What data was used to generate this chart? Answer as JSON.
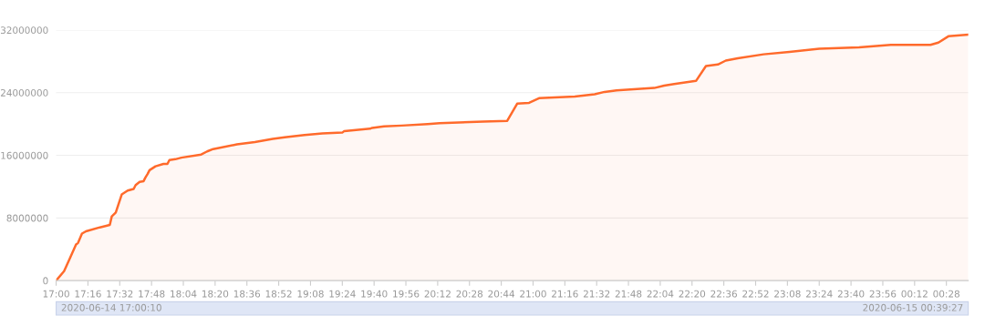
{
  "chart_data": {
    "type": "area",
    "x": [
      "2020-06-14T17:00",
      "2020-06-14T17:04",
      "2020-06-14T17:07",
      "2020-06-14T17:10",
      "2020-06-14T17:11",
      "2020-06-14T17:13",
      "2020-06-14T17:15",
      "2020-06-14T17:22",
      "2020-06-14T17:27",
      "2020-06-14T17:28",
      "2020-06-14T17:30",
      "2020-06-14T17:33",
      "2020-06-14T17:36",
      "2020-06-14T17:39",
      "2020-06-14T17:40",
      "2020-06-14T17:42",
      "2020-06-14T17:44",
      "2020-06-14T17:45",
      "2020-06-14T17:46",
      "2020-06-14T17:47",
      "2020-06-14T17:50",
      "2020-06-14T17:54",
      "2020-06-14T17:56",
      "2020-06-14T17:57",
      "2020-06-14T18:00",
      "2020-06-14T18:03",
      "2020-06-14T18:13",
      "2020-06-14T18:16",
      "2020-06-14T18:19",
      "2020-06-14T18:31",
      "2020-06-14T18:40",
      "2020-06-14T18:49",
      "2020-06-14T18:55",
      "2020-06-14T19:05",
      "2020-06-14T19:14",
      "2020-06-14T19:24",
      "2020-06-14T19:25",
      "2020-06-14T19:38",
      "2020-06-14T19:39",
      "2020-06-14T19:45",
      "2020-06-14T19:54",
      "2020-06-14T20:07",
      "2020-06-14T20:13",
      "2020-06-14T20:35",
      "2020-06-14T20:47",
      "2020-06-14T20:52",
      "2020-06-14T20:58",
      "2020-06-14T21:03",
      "2020-06-14T21:21",
      "2020-06-14T21:31",
      "2020-06-14T21:36",
      "2020-06-14T21:42",
      "2020-06-14T22:01",
      "2020-06-14T22:06",
      "2020-06-14T22:11",
      "2020-06-14T22:22",
      "2020-06-14T22:27",
      "2020-06-14T22:33",
      "2020-06-14T22:37",
      "2020-06-14T22:43",
      "2020-06-14T22:56",
      "2020-06-14T23:09",
      "2020-06-14T23:24",
      "2020-06-14T23:44",
      "2020-06-15T00:00",
      "2020-06-15T00:20",
      "2020-06-15T00:24",
      "2020-06-15T00:29",
      "2020-06-15T00:39"
    ],
    "series": [
      {
        "color": "#ff6a2b",
        "values": [
          0,
          1200000,
          2900000,
          4600000,
          4800000,
          6000000,
          6300000,
          6800000,
          7100000,
          8200000,
          8700000,
          11000000,
          11500000,
          11700000,
          12200000,
          12600000,
          12700000,
          13200000,
          13600000,
          14100000,
          14600000,
          14900000,
          14900000,
          15400000,
          15500000,
          15700000,
          16100000,
          16500000,
          16800000,
          17400000,
          17700000,
          18100000,
          18300000,
          18600000,
          18800000,
          18900000,
          19100000,
          19400000,
          19500000,
          19700000,
          19800000,
          20000000,
          20100000,
          20300000,
          20400000,
          22600000,
          22700000,
          23300000,
          23500000,
          23800000,
          24100000,
          24300000,
          24600000,
          24900000,
          25100000,
          25500000,
          27400000,
          27600000,
          28100000,
          28400000,
          28900000,
          29200000,
          29600000,
          29800000,
          30100000,
          30100000,
          30400000,
          31200000,
          31400000
        ]
      }
    ],
    "xlim": [
      "2020-06-14T17:00",
      "2020-06-15T00:39"
    ],
    "xticks": [
      {
        "value": "2020-06-14T17:00",
        "label": "17:00"
      },
      {
        "value": "2020-06-14T17:16",
        "label": "17:16"
      },
      {
        "value": "2020-06-14T17:32",
        "label": "17:32"
      },
      {
        "value": "2020-06-14T17:48",
        "label": "17:48"
      },
      {
        "value": "2020-06-14T18:04",
        "label": "18:04"
      },
      {
        "value": "2020-06-14T18:20",
        "label": "18:20"
      },
      {
        "value": "2020-06-14T18:36",
        "label": "18:36"
      },
      {
        "value": "2020-06-14T18:52",
        "label": "18:52"
      },
      {
        "value": "2020-06-14T19:08",
        "label": "19:08"
      },
      {
        "value": "2020-06-14T19:24",
        "label": "19:24"
      },
      {
        "value": "2020-06-14T19:40",
        "label": "19:40"
      },
      {
        "value": "2020-06-14T19:56",
        "label": "19:56"
      },
      {
        "value": "2020-06-14T20:12",
        "label": "20:12"
      },
      {
        "value": "2020-06-14T20:28",
        "label": "20:28"
      },
      {
        "value": "2020-06-14T20:44",
        "label": "20:44"
      },
      {
        "value": "2020-06-14T21:00",
        "label": "21:00"
      },
      {
        "value": "2020-06-14T21:16",
        "label": "21:16"
      },
      {
        "value": "2020-06-14T21:32",
        "label": "21:32"
      },
      {
        "value": "2020-06-14T21:48",
        "label": "21:48"
      },
      {
        "value": "2020-06-14T22:04",
        "label": "22:04"
      },
      {
        "value": "2020-06-14T22:20",
        "label": "22:20"
      },
      {
        "value": "2020-06-14T22:36",
        "label": "22:36"
      },
      {
        "value": "2020-06-14T22:52",
        "label": "22:52"
      },
      {
        "value": "2020-06-14T23:08",
        "label": "23:08"
      },
      {
        "value": "2020-06-14T23:24",
        "label": "23:24"
      },
      {
        "value": "2020-06-14T23:40",
        "label": "23:40"
      },
      {
        "value": "2020-06-14T23:56",
        "label": "23:56"
      },
      {
        "value": "2020-06-15T00:12",
        "label": "00:12"
      },
      {
        "value": "2020-06-15T00:28",
        "label": "00:28"
      }
    ],
    "ylim": [
      0,
      32000000
    ],
    "yticks": [
      0,
      8000000,
      16000000,
      24000000,
      32000000
    ],
    "grid": "y",
    "annotations": [
      "2020-06-14 17:00:10",
      "2020-06-15 00:39:27"
    ]
  }
}
